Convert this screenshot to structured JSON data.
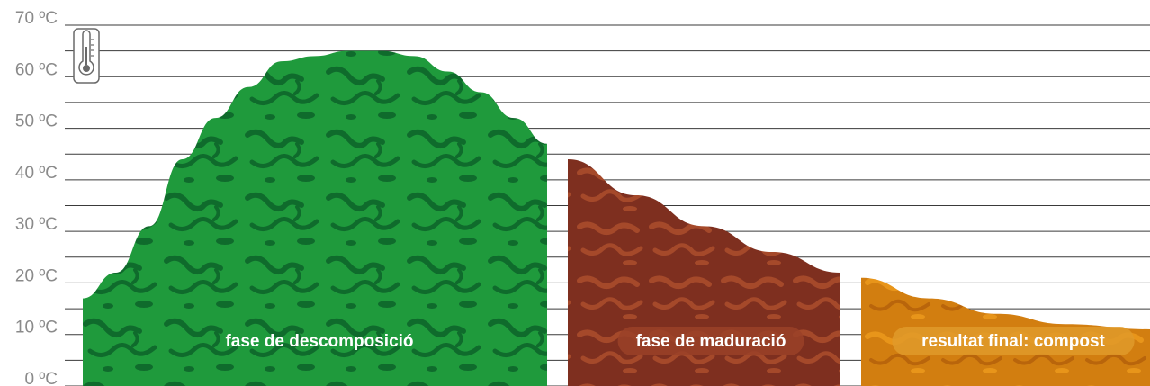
{
  "chart_data": {
    "type": "area",
    "title": "",
    "xlabel": "",
    "ylabel": "",
    "ylim": [
      0,
      70
    ],
    "y_ticks": [
      {
        "value": 0,
        "label": "0 ºC"
      },
      {
        "value": 10,
        "label": "10 ºC"
      },
      {
        "value": 20,
        "label": "20 ºC"
      },
      {
        "value": 30,
        "label": "30 ºC"
      },
      {
        "value": 40,
        "label": "40 ºC"
      },
      {
        "value": 50,
        "label": "50 ºC"
      },
      {
        "value": 60,
        "label": "60 ºC"
      },
      {
        "value": 70,
        "label": "70 ºC"
      }
    ],
    "grid": true,
    "grid_step": 5,
    "series": [
      {
        "name": "fase de descomposició",
        "color": "#1f9a3c",
        "texture_color": "#0f6b2c",
        "points": [
          [
            0,
            17
          ],
          [
            2,
            22
          ],
          [
            4,
            31
          ],
          [
            6,
            44
          ],
          [
            8,
            52
          ],
          [
            10,
            58
          ],
          [
            12,
            63
          ],
          [
            14,
            64
          ],
          [
            16,
            65
          ],
          [
            18,
            65
          ],
          [
            20,
            64
          ],
          [
            22,
            61
          ],
          [
            24,
            57
          ],
          [
            26,
            52
          ],
          [
            28,
            47
          ]
        ]
      },
      {
        "name": "fase de maduració",
        "color": "#7e2f1f",
        "texture_color": "#a5492a",
        "points": [
          [
            0,
            44
          ],
          [
            4,
            37
          ],
          [
            8,
            31
          ],
          [
            12,
            26
          ],
          [
            16,
            22
          ]
        ]
      },
      {
        "name": "resultat final: compost",
        "color": "#d27e10",
        "texture_color": "#e8951a",
        "points": [
          [
            0,
            21
          ],
          [
            4,
            17
          ],
          [
            8,
            14
          ],
          [
            12,
            12
          ],
          [
            17,
            11
          ]
        ]
      }
    ],
    "icon": "thermometer-icon"
  }
}
